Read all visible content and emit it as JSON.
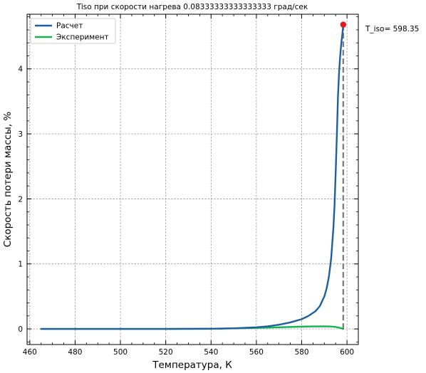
{
  "chart_data": {
    "type": "line",
    "title": "Tiso при скорости нагрева 0.08333333333333333 град/сек",
    "xlabel": "Температура, К",
    "ylabel": "Скорость потери массы, %",
    "xlim": [
      458.8,
      605
    ],
    "ylim": [
      -0.24,
      4.84
    ],
    "xticks": [
      460,
      480,
      500,
      520,
      540,
      560,
      580,
      600
    ],
    "yticks": [
      0,
      1,
      2,
      3,
      4
    ],
    "grid": true,
    "legend_position": "top-left",
    "annotation": "T_iso= 598.35",
    "series": [
      {
        "name": "Расчет",
        "color": "#1f5fa0",
        "x": [
          465,
          480,
          500,
          520,
          540,
          550,
          560,
          565,
          570,
          575,
          580,
          583,
          586,
          588,
          590,
          591,
          592,
          593,
          594,
          594.5,
          595,
          595.5,
          596,
          596.5,
          597,
          597.5,
          598,
          598.35
        ],
        "y": [
          0.0,
          0.0,
          0.0,
          0.0,
          0.003,
          0.01,
          0.025,
          0.04,
          0.065,
          0.1,
          0.15,
          0.2,
          0.27,
          0.35,
          0.5,
          0.62,
          0.8,
          1.08,
          1.55,
          1.9,
          2.4,
          2.95,
          3.55,
          3.95,
          4.2,
          4.4,
          4.55,
          4.68
        ]
      },
      {
        "name": "Эксперимент",
        "color": "#16b34f",
        "x": [
          465,
          480,
          500,
          520,
          540,
          550,
          560,
          570,
          580,
          585,
          590,
          593,
          595,
          597,
          598.35
        ],
        "y": [
          0.0,
          0.0,
          0.0,
          0.0,
          0.002,
          0.008,
          0.016,
          0.025,
          0.035,
          0.038,
          0.04,
          0.037,
          0.03,
          0.015,
          0.0
        ]
      }
    ],
    "marker": {
      "x": 598.35,
      "y": 4.68,
      "color": "#e0191a"
    },
    "vline": {
      "x": 598.35,
      "y0": 0,
      "y1": 4.68,
      "color": "#808080"
    }
  }
}
